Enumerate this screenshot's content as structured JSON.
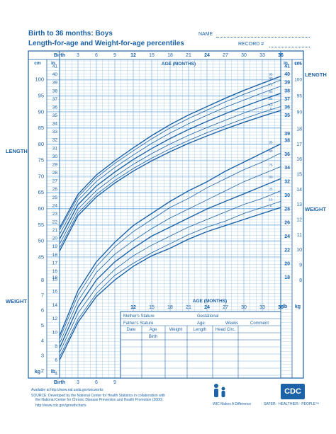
{
  "header": {
    "title_line1": "Birth to 36 months: Boys",
    "title_line2": "Length-for-age and Weight-for-age percentiles",
    "name_label": "NAME",
    "record_label": "RECORD #"
  },
  "side_labels": {
    "length": "LENGTH",
    "weight": "WEIGHT"
  },
  "axes": {
    "top_months": [
      "Birth",
      "3",
      "6",
      "9",
      "12",
      "15",
      "18",
      "21",
      "24",
      "27",
      "30",
      "33",
      "36"
    ],
    "bottom_months": [
      "Birth",
      "3",
      "6",
      "9"
    ],
    "inner_months": [
      "12",
      "15",
      "18",
      "21",
      "24",
      "27",
      "30",
      "33",
      "36"
    ],
    "age_title": "AGE (MONTHS)",
    "cm": "cm",
    "in": "in",
    "kg": "kg",
    "lb": "lb",
    "length_cm_ticks": [
      100,
      95,
      90,
      85,
      80,
      75,
      70,
      65,
      60,
      55,
      50,
      45
    ],
    "length_in_ticks": [
      41,
      40,
      39,
      38,
      37,
      36,
      35,
      34,
      33,
      32,
      31,
      30,
      29,
      28,
      27,
      26,
      25,
      24,
      23,
      22,
      21,
      20,
      19,
      18,
      17,
      16,
      15
    ],
    "right_in_ticks": [
      41,
      40,
      39,
      38,
      37,
      36,
      35
    ],
    "right_cm_ticks": [
      105,
      100,
      95,
      90
    ],
    "weight_lb_right": [
      39,
      38,
      36,
      34,
      32,
      30,
      28,
      26,
      24,
      22,
      20,
      18
    ],
    "weight_kg_right": [
      18,
      17,
      16,
      15,
      14,
      13,
      12,
      11,
      10,
      9,
      8
    ],
    "weight_lb_left": [
      18,
      16,
      14,
      12,
      10,
      8,
      6,
      4
    ],
    "weight_kg_left": [
      8,
      7,
      6,
      5,
      4,
      3,
      2
    ]
  },
  "form": {
    "mothers_stature": "Mother's Stature",
    "fathers_stature": "Father's Stature",
    "gestational": "Gestational",
    "age_label": "Age:",
    "weeks": "Weeks",
    "comment": "Comment",
    "columns": [
      "Date",
      "Age",
      "Weight",
      "Length",
      "Head Circ."
    ],
    "birth": "Birth"
  },
  "footer": {
    "available": "Available at http://www.nal.usda.gov/wicworks",
    "source1": "SOURCE: Developed by the National Center for Health Statistics in collaboration with",
    "source2": "the National Center for Chronic Disease Prevention and Health Promotion (2000).",
    "url": "http://www.cdc.gov/growthcharts",
    "wic": "WIC Makes A Difference",
    "cdc": "CDC",
    "cdc_tag": "SAFER · HEALTHIER · PEOPLE™"
  },
  "colors": {
    "blue": "#1c62a6",
    "grid": "#7ab0de",
    "bg": "#ffffff"
  },
  "chart_data": [
    {
      "type": "line",
      "title": "Length-for-age percentiles",
      "xlabel": "AGE (MONTHS)",
      "ylabel": "cm",
      "x": [
        0,
        3,
        6,
        9,
        12,
        15,
        18,
        21,
        24,
        27,
        30,
        33,
        36
      ],
      "xlim": [
        0,
        36
      ],
      "ylim": [
        43,
        104
      ],
      "series": [
        {
          "name": "95",
          "values": [
            54.0,
            64.4,
            70.4,
            74.8,
            78.8,
            82.6,
            86.0,
            89.0,
            91.6,
            94.2,
            96.6,
            98.8,
            101.0
          ]
        },
        {
          "name": "90",
          "values": [
            53.3,
            63.6,
            69.6,
            74.0,
            77.9,
            81.6,
            85.0,
            87.9,
            90.5,
            93.1,
            95.4,
            97.6,
            99.8
          ]
        },
        {
          "name": "75",
          "values": [
            52.0,
            62.5,
            68.4,
            72.7,
            76.6,
            80.2,
            83.4,
            86.3,
            88.9,
            91.4,
            93.6,
            95.8,
            97.9
          ]
        },
        {
          "name": "50",
          "values": [
            50.5,
            61.2,
            67.0,
            71.3,
            75.2,
            78.6,
            81.7,
            84.5,
            87.0,
            89.4,
            91.6,
            93.7,
            95.7
          ]
        },
        {
          "name": "25",
          "values": [
            49.0,
            59.8,
            65.6,
            69.9,
            73.7,
            77.0,
            80.0,
            82.7,
            85.1,
            87.4,
            89.6,
            91.6,
            93.5
          ]
        },
        {
          "name": "10",
          "values": [
            47.7,
            58.6,
            64.4,
            68.7,
            72.4,
            75.6,
            78.5,
            81.1,
            83.5,
            85.7,
            87.8,
            89.8,
            91.6
          ]
        },
        {
          "name": "5",
          "values": [
            46.8,
            57.8,
            63.6,
            67.9,
            71.6,
            74.8,
            77.6,
            80.2,
            82.5,
            84.7,
            86.7,
            88.6,
            90.4
          ]
        }
      ]
    },
    {
      "type": "line",
      "title": "Weight-for-age percentiles",
      "xlabel": "AGE (MONTHS)",
      "ylabel": "kg",
      "x": [
        0,
        3,
        6,
        9,
        12,
        15,
        18,
        21,
        24,
        27,
        30,
        33,
        36
      ],
      "xlim": [
        0,
        36
      ],
      "ylim": [
        1.6,
        18
      ],
      "series": [
        {
          "name": "95",
          "values": [
            4.3,
            7.3,
            9.2,
            10.5,
            11.6,
            12.4,
            13.2,
            13.9,
            14.5,
            15.2,
            15.8,
            16.4,
            17.0
          ]
        },
        {
          "name": "90",
          "values": [
            4.1,
            7.0,
            8.9,
            10.2,
            11.2,
            12.0,
            12.8,
            13.4,
            14.1,
            14.7,
            15.3,
            15.8,
            16.4
          ]
        },
        {
          "name": "75",
          "values": [
            3.8,
            6.6,
            8.5,
            9.7,
            10.6,
            11.4,
            12.1,
            12.7,
            13.3,
            13.9,
            14.5,
            15.0,
            15.5
          ]
        },
        {
          "name": "50",
          "values": [
            3.5,
            6.2,
            8.0,
            9.2,
            10.1,
            10.9,
            11.5,
            12.1,
            12.7,
            13.2,
            13.7,
            14.2,
            14.7
          ]
        },
        {
          "name": "25",
          "values": [
            3.2,
            5.8,
            7.5,
            8.7,
            9.6,
            10.3,
            10.9,
            11.5,
            12.0,
            12.5,
            13.0,
            13.4,
            13.9
          ]
        },
        {
          "name": "10",
          "values": [
            2.9,
            5.4,
            7.1,
            8.3,
            9.1,
            9.8,
            10.4,
            11.0,
            11.5,
            11.9,
            12.4,
            12.8,
            13.2
          ]
        },
        {
          "name": "5",
          "values": [
            2.7,
            5.2,
            6.9,
            8.0,
            8.9,
            9.6,
            10.1,
            10.7,
            11.2,
            11.6,
            12.0,
            12.4,
            12.8
          ]
        }
      ]
    }
  ]
}
